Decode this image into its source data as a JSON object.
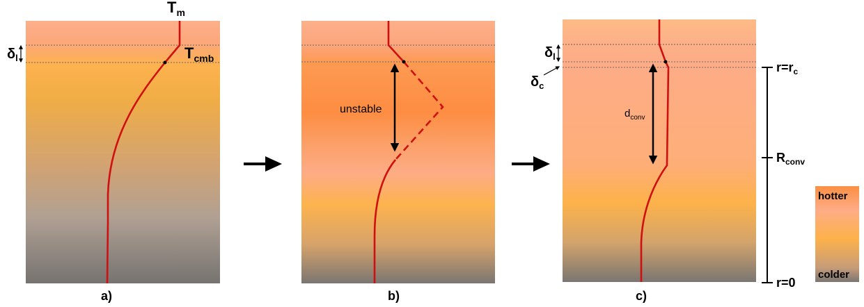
{
  "panels": [
    {
      "caption": "a)",
      "label_tm": "T",
      "label_tm_sub": "m",
      "label_tcmb": "T",
      "label_tcmb_sub": "cmb",
      "label_delta_l": "δ",
      "label_delta_l_sub": "l"
    },
    {
      "caption": "b)",
      "label_unstable": "unstable"
    },
    {
      "caption": "c)",
      "label_delta_l": "δ",
      "label_delta_l_sub": "l",
      "label_delta_c": "δ",
      "label_delta_c_sub": "c",
      "label_dconv": "d",
      "label_dconv_sub": "conv"
    }
  ],
  "radius_axis": {
    "top_label": "r=r",
    "top_label_sub": "c",
    "mid_label": "R",
    "mid_label_sub": "conv",
    "bottom_label": "r=0"
  },
  "legend": {
    "hot_label": "hotter",
    "cold_label": "colder"
  },
  "colors": {
    "profile": "#d01010",
    "hot": "#fdaa82",
    "warm": "#fdb44a",
    "cold": "#7a7672",
    "strong_hot": "#fc8f44"
  }
}
